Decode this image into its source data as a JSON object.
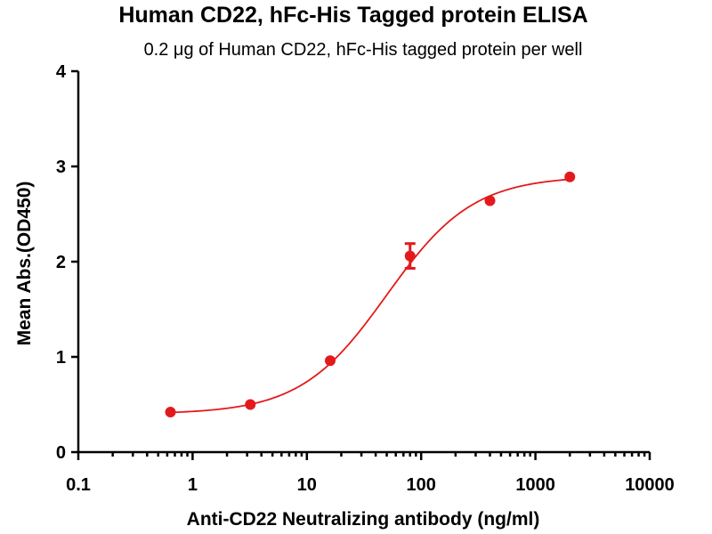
{
  "chart_data": {
    "type": "scatter",
    "title": "Human CD22,  hFc-His Tagged protein ELISA",
    "subtitle": "0.2 μg of Human CD22, hFc-His tagged protein per well",
    "xlabel": "Anti-CD22 Neutralizing antibody (ng/ml)",
    "ylabel": "Mean Abs.(OD450)",
    "x_scale": "log",
    "xlim": [
      0.1,
      10000
    ],
    "ylim": [
      0,
      4
    ],
    "x_ticks": [
      0.1,
      1,
      10,
      100,
      1000,
      10000
    ],
    "x_tick_labels": [
      "0.1",
      "1",
      "10",
      "100",
      "1000",
      "10000"
    ],
    "y_ticks": [
      0,
      1,
      2,
      3,
      4
    ],
    "y_tick_labels": [
      "0",
      "1",
      "2",
      "3",
      "4"
    ],
    "grid": false,
    "color": "#e31a1c",
    "points": [
      {
        "x": 0.64,
        "y": 0.42
      },
      {
        "x": 3.2,
        "y": 0.5
      },
      {
        "x": 16,
        "y": 0.96
      },
      {
        "x": 80,
        "y": 2.06,
        "err": 0.13
      },
      {
        "x": 400,
        "y": 2.64
      },
      {
        "x": 2000,
        "y": 2.89
      }
    ],
    "fit": {
      "model": "4PL",
      "bottom": 0.4,
      "top": 2.9,
      "ec50": 50,
      "hill": 1.15
    }
  }
}
